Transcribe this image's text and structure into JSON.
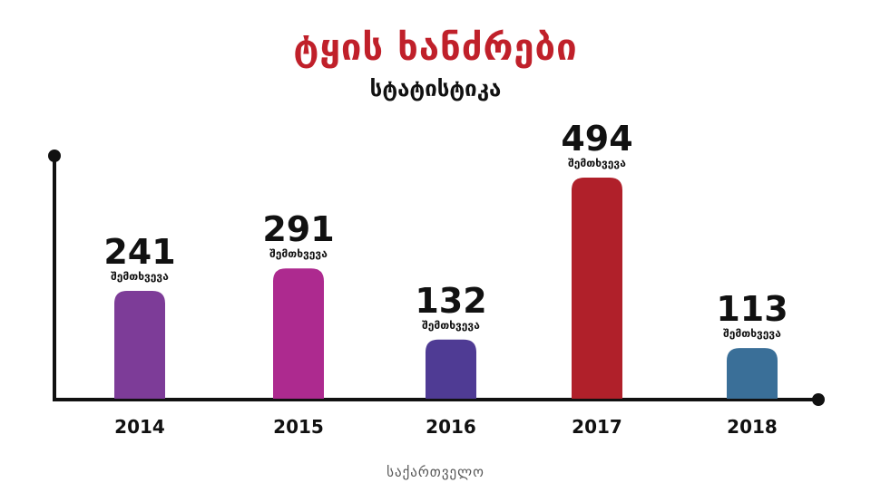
{
  "header": {
    "title": "ტყის ხანძრები",
    "subtitle": "სტატისტიკა"
  },
  "footer": {
    "source": "საქართველო"
  },
  "chart_data": {
    "type": "bar",
    "categories": [
      "2014",
      "2015",
      "2016",
      "2017",
      "2018"
    ],
    "values": [
      241,
      291,
      132,
      494,
      113
    ],
    "value_unit_label": "შემთხვევა",
    "bar_colors": [
      "#7d3c98",
      "#ad2a8f",
      "#4f3b94",
      "#b0202a",
      "#3a6f98"
    ],
    "ylim": [
      0,
      500
    ],
    "grid": false,
    "legend": "none"
  }
}
